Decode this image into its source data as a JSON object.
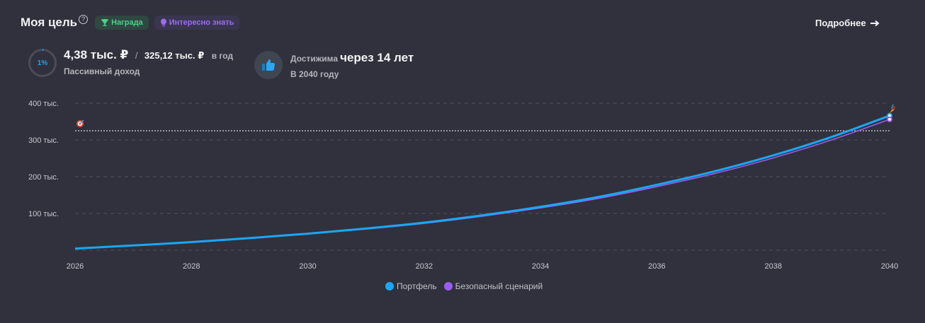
{
  "header": {
    "title": "Моя цель",
    "help_icon": "question-circle-icon",
    "badges": [
      {
        "label": "Награда",
        "icon": "trophy-icon",
        "color": "#4fd08a"
      },
      {
        "label": "Интересно знать",
        "icon": "lightbulb-icon",
        "color": "#9c6cf0"
      }
    ],
    "more_label": "Подробнее",
    "more_icon": "arrow-right-icon"
  },
  "income": {
    "progress_percent": 1,
    "progress_label": "1%",
    "current": "4,38 тыс. ₽",
    "separator": "/",
    "target": "325,12 тыс. ₽",
    "period": "в год",
    "caption": "Пассивный доход"
  },
  "achievable": {
    "icon": "thumbs-up-icon",
    "prefix": "Достижима",
    "highlight": "через 14 лет",
    "caption": "В 2040 году"
  },
  "chart_data": {
    "type": "line",
    "x": [
      2026,
      2027,
      2028,
      2029,
      2030,
      2031,
      2032,
      2033,
      2034,
      2035,
      2036,
      2037,
      2038,
      2039,
      2040
    ],
    "x_ticks": [
      "2026",
      "2028",
      "2030",
      "2032",
      "2034",
      "2036",
      "2038",
      "2040"
    ],
    "y_ticks": [
      "100 тыс.",
      "200 тыс.",
      "300 тыс.",
      "400 тыс."
    ],
    "y_tick_values": [
      100000,
      200000,
      300000,
      400000
    ],
    "ylim": [
      0,
      400000
    ],
    "xlim": [
      2026,
      2040
    ],
    "target_value": 325120,
    "target_icon": "target-icon",
    "finish_icon": "rocket-icon",
    "grid": true,
    "legend_position": "bottom",
    "series": [
      {
        "name": "Портфель",
        "color": "#1aa7f5",
        "values": [
          4380,
          13000,
          22000,
          33000,
          45000,
          59000,
          75000,
          95000,
          118000,
          145000,
          178000,
          215000,
          258000,
          308000,
          366000
        ]
      },
      {
        "name": "Безопасный сценарий",
        "color": "#9b5cf0",
        "values": [
          4380,
          12500,
          21000,
          32000,
          44000,
          57500,
          73000,
          92500,
          115000,
          141000,
          173000,
          209000,
          251000,
          300000,
          356000
        ]
      }
    ]
  }
}
